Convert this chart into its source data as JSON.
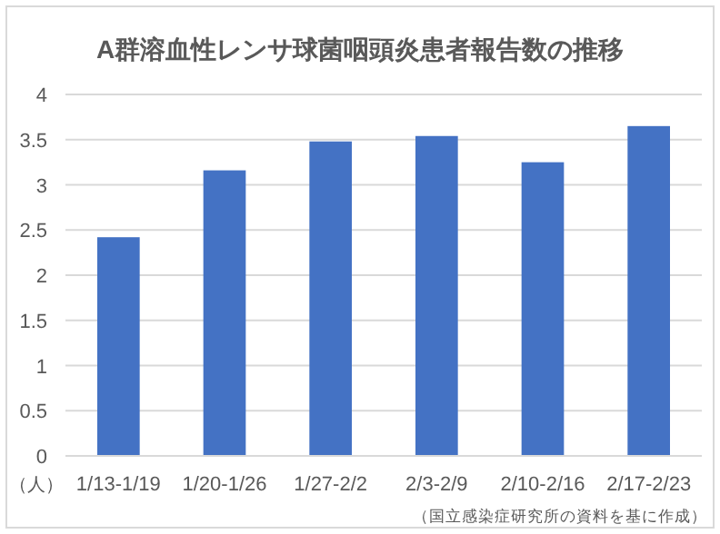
{
  "chart_data": {
    "type": "bar",
    "title": "A群溶血性レンサ球菌咽頭炎患者報告数の推移",
    "ylabel": "（人）",
    "categories": [
      "1/13-1/19",
      "1/20-1/26",
      "1/27-2/2",
      "2/3-2/9",
      "2/10-2/16",
      "2/17-2/23"
    ],
    "values": [
      2.42,
      3.16,
      3.48,
      3.54,
      3.25,
      3.65
    ],
    "color": "#4472c4",
    "ylim": [
      0,
      4
    ],
    "yticks": [
      0,
      0.5,
      1,
      1.5,
      2,
      2.5,
      3,
      3.5,
      4
    ],
    "grid": "y",
    "annotations": [
      "（国立感染症研究所の資料を基に作成）"
    ]
  }
}
